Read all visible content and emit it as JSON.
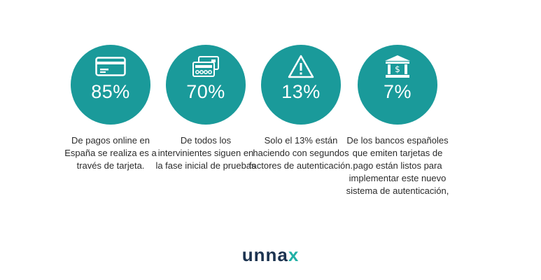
{
  "stats": [
    {
      "icon": "credit-card-icon",
      "value": "85%",
      "text": "De pagos online en España se realiza es a través de tarjeta."
    },
    {
      "icon": "cards-keypad-icon",
      "value": "70%",
      "text": "De todos los intervinientes siguen en la fase inicial de pruebas"
    },
    {
      "icon": "warning-icon",
      "value": "13%",
      "text": "Solo el 13% están haciendo con segundos factores de autenticación."
    },
    {
      "icon": "bank-icon",
      "value": "7%",
      "text": "De los bancos españoles que emiten tarjetas de pago están listos para implementar este nuevo sistema de autenticación,"
    }
  ],
  "logo": {
    "main": "unna",
    "accent": "x"
  },
  "colors": {
    "circle": "#1a9a9a",
    "logo_dark": "#1c3350",
    "logo_accent": "#22b0a6"
  }
}
